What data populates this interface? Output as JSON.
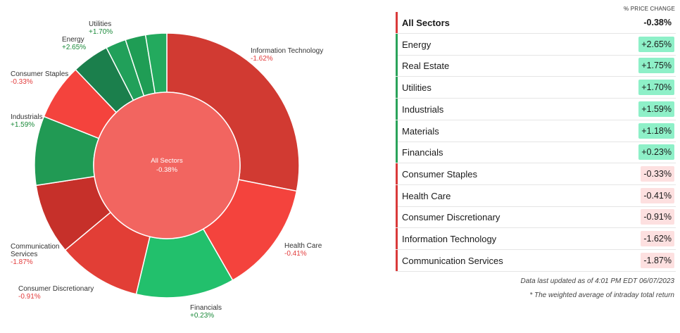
{
  "colors": {
    "pos_text": "#1b8a3a",
    "neg_text": "#e23b3b",
    "pos_bar": "#2aa35a",
    "neg_bar": "#d93a3a",
    "pos_badge": "#8ef0c8",
    "neg_badge": "#fde0e0",
    "center_fill": "#f26560"
  },
  "chart_data": {
    "type": "pie",
    "center": {
      "label": "All Sectors",
      "value": "-0.38%"
    },
    "slices": [
      {
        "name": "Information Technology",
        "display": "Information Technology",
        "change": "-1.62%",
        "weight": 28.3,
        "color": "#d13a32",
        "sign": "neg"
      },
      {
        "name": "Health Care",
        "display": "Health Care",
        "change": "-0.41%",
        "weight": 13.7,
        "color": "#f4433d",
        "sign": "neg"
      },
      {
        "name": "Financials",
        "display": "Financials",
        "change": "+0.23%",
        "weight": 12.1,
        "color": "#22c06c",
        "sign": "pos"
      },
      {
        "name": "Consumer Discretionary",
        "display": "Consumer Discretionary",
        "change": "-0.91%",
        "weight": 10.3,
        "color": "#e23e36",
        "sign": "neg"
      },
      {
        "name": "Communication Services",
        "display": "Communication Services",
        "change": "-1.87%",
        "weight": 8.7,
        "color": "#c6302a",
        "sign": "neg"
      },
      {
        "name": "Industrials",
        "display": "Industrials",
        "change": "+1.59%",
        "weight": 8.5,
        "color": "#219a54",
        "sign": "pos"
      },
      {
        "name": "Consumer Staples",
        "display": "Consumer Staples",
        "change": "-0.33%",
        "weight": 6.9,
        "color": "#f4433d",
        "sign": "neg"
      },
      {
        "name": "Energy",
        "display": "Energy",
        "change": "+2.65%",
        "weight": 4.6,
        "color": "#1b7f4c",
        "sign": "pos"
      },
      {
        "name": "Materials",
        "display": "",
        "change": "",
        "weight": 2.5,
        "color": "#21a05a",
        "sign": "pos"
      },
      {
        "name": "Real Estate",
        "display": "",
        "change": "",
        "weight": 2.5,
        "color": "#1f9d55",
        "sign": "pos"
      },
      {
        "name": "Utilities",
        "display": "Utilities",
        "change": "+1.70%",
        "weight": 2.6,
        "color": "#23aa5e",
        "sign": "pos"
      }
    ]
  },
  "table": {
    "column_header": "% PRICE CHANGE",
    "rows": [
      {
        "label": "All Sectors",
        "value": "-0.38%",
        "sign": "neg",
        "summary": true
      },
      {
        "label": "Energy",
        "value": "+2.65%",
        "sign": "pos"
      },
      {
        "label": "Real Estate",
        "value": "+1.75%",
        "sign": "pos"
      },
      {
        "label": "Utilities",
        "value": "+1.70%",
        "sign": "pos"
      },
      {
        "label": "Industrials",
        "value": "+1.59%",
        "sign": "pos"
      },
      {
        "label": "Materials",
        "value": "+1.18%",
        "sign": "pos"
      },
      {
        "label": "Financials",
        "value": "+0.23%",
        "sign": "pos"
      },
      {
        "label": "Consumer Staples",
        "value": "-0.33%",
        "sign": "neg"
      },
      {
        "label": "Health Care",
        "value": "-0.41%",
        "sign": "neg"
      },
      {
        "label": "Consumer Discretionary",
        "value": "-0.91%",
        "sign": "neg"
      },
      {
        "label": "Information Technology",
        "value": "-1.62%",
        "sign": "neg"
      },
      {
        "label": "Communication Services",
        "value": "-1.87%",
        "sign": "neg"
      }
    ],
    "footnote_updated": "Data last updated as of 4:01 PM EDT 06/07/2023",
    "footnote_weighted": "* The weighted average of intraday total return"
  }
}
